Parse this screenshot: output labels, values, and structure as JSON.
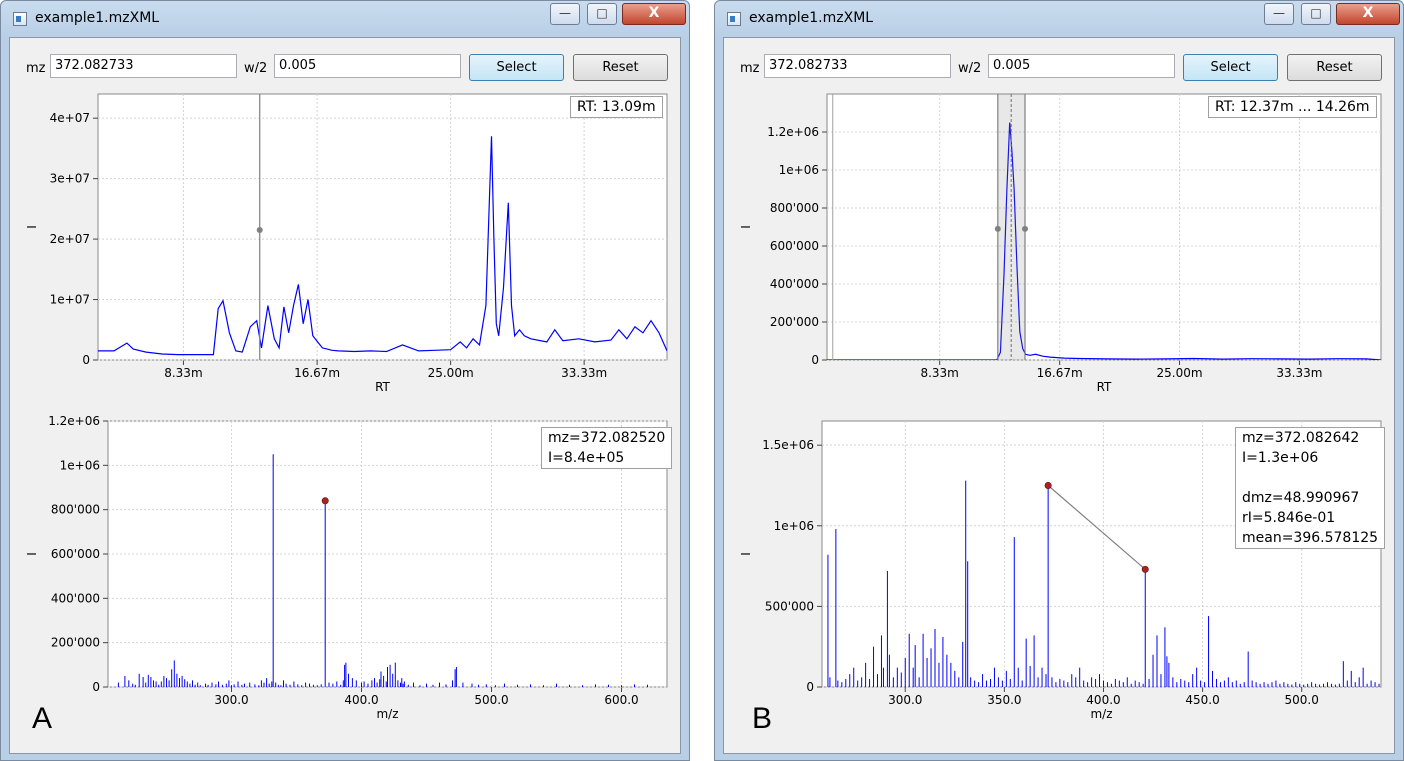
{
  "windows": [
    {
      "id": "A",
      "title": "example1.mzXML",
      "controls": {
        "minimize": "—",
        "maximize": "□",
        "close": "X"
      },
      "toolbar": {
        "mz_label": "mz",
        "mz_value": "372.082733",
        "w2_label": "w/2",
        "w2_value": "0.005",
        "select_label": "Select",
        "reset_label": "Reset"
      },
      "panel_label": "A",
      "chrom_info": "RT: 13.09m",
      "spec_info": "mz=372.082520\nI=8.4e+05"
    },
    {
      "id": "B",
      "title": "example1.mzXML",
      "controls": {
        "minimize": "—",
        "maximize": "□",
        "close": "X"
      },
      "toolbar": {
        "mz_label": "mz",
        "mz_value": "372.082733",
        "w2_label": "w/2",
        "w2_value": "0.005",
        "select_label": "Select",
        "reset_label": "Reset"
      },
      "panel_label": "B",
      "chrom_info": "RT: 12.37m ... 14.26m",
      "spec_info": "mz=372.082642\nI=1.3e+06\n\ndmz=48.990967\nrI=5.846e-01\nmean=396.578125"
    }
  ],
  "chart_data": [
    {
      "type": "line",
      "window": "A",
      "xlabel": "RT",
      "ylabel": "I",
      "xlim": [
        3.0,
        38.5
      ],
      "ylim": [
        0,
        44000000
      ],
      "xticks": [
        8.33,
        16.67,
        25.0,
        33.33
      ],
      "xticklabels": [
        "8.33m",
        "16.67m",
        "25.00m",
        "33.33m"
      ],
      "yticks": [
        0,
        10000000,
        20000000,
        30000000,
        40000000
      ],
      "yticklabels": [
        "0",
        "1e+07",
        "2e+07",
        "3e+07",
        "4e+07"
      ],
      "grid": true,
      "marker_rt": 13.09,
      "marker_y": 21500000,
      "series": [
        {
          "color": "#0000ff",
          "x": [
            3.0,
            4.0,
            4.8,
            5.2,
            6.0,
            7.0,
            8.0,
            9.5,
            10.2,
            10.5,
            10.8,
            11.2,
            11.6,
            12.0,
            12.5,
            12.9,
            13.2,
            13.6,
            14.0,
            14.3,
            14.6,
            14.9,
            15.2,
            15.5,
            15.8,
            16.1,
            16.4,
            16.7,
            17.0,
            17.3,
            17.6,
            18.0,
            19.0,
            20.0,
            21.0,
            22.0,
            23.0,
            24.0,
            25.0,
            25.6,
            26.0,
            26.4,
            26.8,
            27.2,
            27.55,
            27.7,
            27.85,
            28.0,
            28.3,
            28.6,
            28.8,
            29.0,
            29.3,
            29.6,
            30.0,
            31.0,
            31.5,
            32.0,
            33.0,
            34.0,
            35.0,
            35.5,
            36.0,
            36.5,
            37.0,
            37.5,
            38.0,
            38.5
          ],
          "y": [
            1500000,
            1500000,
            2800000,
            1800000,
            1300000,
            1000000,
            900000,
            900000,
            900000,
            8500000,
            9800000,
            4500000,
            1500000,
            1300000,
            5500000,
            6500000,
            2000000,
            9000000,
            3500000,
            2000000,
            8800000,
            4500000,
            9000000,
            12500000,
            6000000,
            10000000,
            4000000,
            3000000,
            2000000,
            1800000,
            1600000,
            1500000,
            1400000,
            1500000,
            1400000,
            2500000,
            1500000,
            1600000,
            1700000,
            3000000,
            2000000,
            3500000,
            2500000,
            9000000,
            37000000,
            20000000,
            6000000,
            4000000,
            12000000,
            26000000,
            9000000,
            4000000,
            5000000,
            4000000,
            3500000,
            3000000,
            5000000,
            3200000,
            3500000,
            3000000,
            3300000,
            5000000,
            3500000,
            5500000,
            4500000,
            6500000,
            4500000,
            1500000
          ]
        }
      ]
    },
    {
      "type": "bar",
      "window": "A",
      "xlabel": "m/z",
      "ylabel": "I",
      "xlim": [
        205,
        635
      ],
      "ylim": [
        0,
        1200000
      ],
      "xticks": [
        300,
        400,
        500,
        600
      ],
      "xticklabels": [
        "300.0",
        "400.0",
        "500.0",
        "600.0"
      ],
      "yticks": [
        0,
        200000,
        400000,
        600000,
        800000,
        1000000,
        1200000
      ],
      "yticklabels": [
        "0",
        "200'000",
        "400'000",
        "600'000",
        "800'000",
        "1e+06",
        "1.2e+06"
      ],
      "grid": true,
      "marker": {
        "x": 372.08252,
        "y": 840000
      },
      "peaks_x": [
        213,
        218,
        221,
        224,
        226,
        229,
        232,
        234,
        236,
        238,
        240,
        242,
        244,
        246,
        248,
        250,
        252,
        254,
        256,
        258,
        260,
        262,
        264,
        266,
        268,
        270,
        272,
        274,
        276,
        280,
        282,
        285,
        288,
        290,
        293,
        296,
        298,
        300,
        302,
        305,
        308,
        310,
        314,
        318,
        321,
        323,
        325,
        327,
        329,
        331,
        332.06,
        334,
        336,
        338,
        340,
        342,
        345,
        348,
        351,
        354,
        357,
        360,
        363,
        366,
        369,
        372.08,
        375,
        378,
        381,
        384,
        386,
        387,
        388,
        390,
        393,
        396,
        400,
        402,
        405,
        408,
        410,
        412,
        414,
        415,
        417,
        419,
        420,
        422,
        424,
        426,
        428,
        430,
        431,
        432,
        433,
        436,
        440,
        445,
        450,
        455,
        460,
        465,
        470,
        472,
        473,
        478,
        485,
        490,
        496,
        503,
        510,
        520,
        530,
        540,
        550,
        560,
        570,
        580,
        590,
        600,
        610,
        620
      ],
      "peaks_y": [
        20000,
        50000,
        30000,
        15000,
        10000,
        60000,
        45000,
        20000,
        55000,
        45000,
        30000,
        25000,
        10000,
        25000,
        50000,
        40000,
        30000,
        80000,
        120000,
        60000,
        40000,
        50000,
        35000,
        25000,
        15000,
        30000,
        10000,
        20000,
        8000,
        15000,
        10000,
        20000,
        12000,
        25000,
        10000,
        15000,
        30000,
        8000,
        12000,
        25000,
        10000,
        15000,
        20000,
        12000,
        8000,
        30000,
        20000,
        40000,
        15000,
        25000,
        1050000,
        20000,
        10000,
        8000,
        30000,
        15000,
        10000,
        25000,
        12000,
        8000,
        20000,
        15000,
        10000,
        8000,
        12000,
        840000,
        20000,
        15000,
        25000,
        10000,
        30000,
        100000,
        110000,
        60000,
        40000,
        30000,
        20000,
        25000,
        15000,
        30000,
        40000,
        20000,
        35000,
        70000,
        50000,
        25000,
        90000,
        100000,
        60000,
        110000,
        30000,
        20000,
        40000,
        15000,
        25000,
        10000,
        20000,
        8000,
        15000,
        10000,
        20000,
        12000,
        30000,
        80000,
        90000,
        20000,
        15000,
        10000,
        12000,
        8000,
        15000,
        10000,
        12000,
        8000,
        15000,
        10000,
        8000,
        12000,
        10000,
        8000,
        12000,
        10000,
        8000,
        10000
      ]
    },
    {
      "type": "line",
      "window": "B",
      "xlabel": "RT",
      "ylabel": "I",
      "xlim": [
        0.5,
        39.0
      ],
      "ylim": [
        0,
        1400000
      ],
      "xticks": [
        8.33,
        16.67,
        25.0,
        33.33
      ],
      "xticklabels": [
        "8.33m",
        "16.67m",
        "25.00m",
        "33.33m"
      ],
      "yticks": [
        0,
        200000,
        400000,
        600000,
        800000,
        1000000,
        1200000
      ],
      "yticklabels": [
        "0",
        "200'000",
        "400'000",
        "600'000",
        "800'000",
        "1e+06",
        "1.2e+06"
      ],
      "grid": true,
      "range_rt": [
        12.37,
        14.26
      ],
      "range_mid": 13.3,
      "range_marker_y": 690000,
      "series": [
        {
          "color": "#0000ff",
          "x": [
            0.5,
            1.0,
            11.0,
            12.3,
            12.55,
            12.8,
            13.0,
            13.2,
            13.35,
            13.5,
            13.7,
            13.9,
            14.1,
            14.3,
            14.6,
            15.0,
            15.5,
            16.0,
            17.0,
            18.0,
            20.0,
            22.0,
            24.0,
            26.0,
            28.0,
            30.0,
            32.0,
            34.0,
            36.0,
            38.0,
            39.0
          ],
          "y": [
            0,
            0,
            0,
            0,
            40000,
            450000,
            900000,
            1250000,
            1100000,
            900000,
            500000,
            150000,
            60000,
            30000,
            25000,
            30000,
            20000,
            15000,
            10000,
            8000,
            6000,
            5000,
            6000,
            8000,
            5000,
            7000,
            6000,
            5000,
            7000,
            6000,
            0
          ]
        }
      ]
    },
    {
      "type": "bar",
      "window": "B",
      "xlabel": "m/z",
      "ylabel": "I",
      "xlim": [
        258,
        540
      ],
      "ylim": [
        0,
        1650000
      ],
      "xticks": [
        300,
        350,
        400,
        450,
        500
      ],
      "xticklabels": [
        "300.0",
        "350.0",
        "400.0",
        "450.0",
        "500.0"
      ],
      "yticks": [
        0,
        500000,
        1000000,
        1500000
      ],
      "yticklabels": [
        "0",
        "500'000",
        "1e+06",
        "1.5e+06"
      ],
      "grid": true,
      "marker1": {
        "x": 372.08,
        "y": 1250000
      },
      "marker2": {
        "x": 421.07,
        "y": 730000
      },
      "peaks_x": [
        261,
        262,
        265,
        266,
        268,
        270,
        272,
        274,
        276,
        278,
        280,
        282,
        284,
        286,
        288,
        289,
        291,
        292,
        294,
        296,
        298,
        300,
        302,
        304,
        305,
        307,
        309,
        311,
        313,
        315,
        317,
        319,
        321,
        323,
        325,
        327,
        329,
        330.5,
        331.5,
        333,
        335,
        337,
        339,
        341,
        343,
        345,
        347,
        349,
        351,
        353,
        355,
        357,
        359,
        361,
        363,
        365,
        367,
        369,
        371,
        372.08,
        374,
        376,
        378,
        380,
        382,
        384,
        386,
        388,
        390,
        392,
        394,
        396,
        398,
        400,
        402,
        404,
        406,
        408,
        410,
        412,
        414,
        416,
        418,
        420,
        421.07,
        423,
        425,
        427,
        429,
        431,
        432,
        433,
        435,
        437,
        439,
        441,
        443,
        445,
        447,
        449,
        451,
        453,
        455,
        457,
        459,
        461,
        463,
        465,
        467,
        469,
        471,
        473,
        475,
        477,
        479,
        481,
        483,
        485,
        487,
        489,
        491,
        493,
        495,
        497,
        499,
        501,
        503,
        505,
        507,
        509,
        511,
        513,
        515,
        517,
        519,
        521,
        523,
        525,
        527,
        529,
        531,
        533,
        535,
        537,
        539
      ],
      "peaks_y": [
        820000,
        60000,
        980000,
        40000,
        30000,
        50000,
        80000,
        120000,
        40000,
        60000,
        150000,
        50000,
        250000,
        80000,
        320000,
        120000,
        720000,
        200000,
        60000,
        120000,
        90000,
        180000,
        330000,
        120000,
        260000,
        60000,
        330000,
        180000,
        240000,
        360000,
        150000,
        310000,
        200000,
        150000,
        100000,
        60000,
        280000,
        1280000,
        780000,
        60000,
        40000,
        30000,
        80000,
        40000,
        50000,
        120000,
        60000,
        40000,
        100000,
        50000,
        930000,
        120000,
        40000,
        300000,
        130000,
        320000,
        60000,
        120000,
        80000,
        1250000,
        60000,
        30000,
        50000,
        40000,
        30000,
        80000,
        60000,
        120000,
        40000,
        30000,
        60000,
        50000,
        80000,
        40000,
        30000,
        20000,
        50000,
        40000,
        30000,
        60000,
        20000,
        40000,
        30000,
        20000,
        730000,
        50000,
        200000,
        320000,
        80000,
        370000,
        190000,
        150000,
        60000,
        30000,
        50000,
        40000,
        30000,
        80000,
        120000,
        40000,
        30000,
        440000,
        100000,
        50000,
        30000,
        40000,
        60000,
        30000,
        40000,
        20000,
        30000,
        220000,
        40000,
        30000,
        20000,
        30000,
        20000,
        30000,
        40000,
        20000,
        30000,
        20000,
        15000,
        30000,
        20000,
        15000,
        20000,
        30000,
        20000,
        15000,
        20000,
        30000,
        20000,
        15000,
        20000,
        160000,
        40000,
        100000,
        30000,
        60000,
        120000,
        20000,
        40000,
        30000,
        20000,
        10000,
        80000
      ]
    }
  ]
}
